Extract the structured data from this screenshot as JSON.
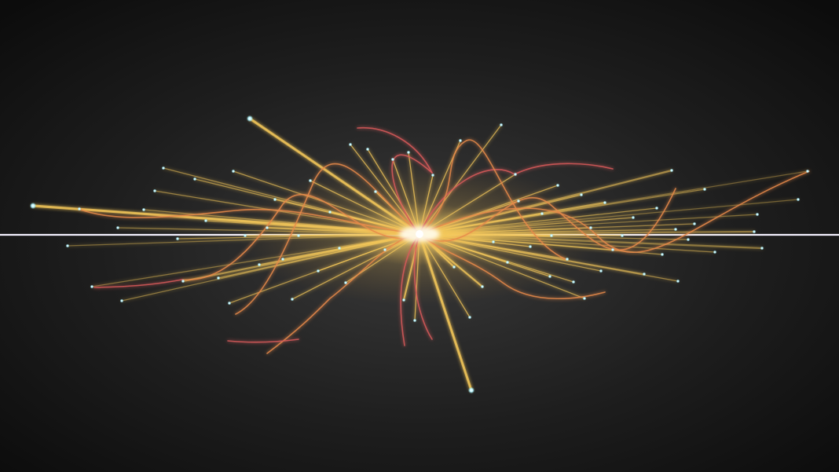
{
  "image": {
    "subject": "particle-collision-event",
    "colors": {
      "background_center": "#3a3a3a",
      "background_edge": "#0c0c0c",
      "beam_line": "#f4f1ff",
      "core_glow": "#fff6c8",
      "track_gold": "#f3c75a",
      "track_orange": "#e88a4a",
      "track_red": "#d95a5a",
      "endpoint_cyan": "#a8f2ff"
    }
  }
}
